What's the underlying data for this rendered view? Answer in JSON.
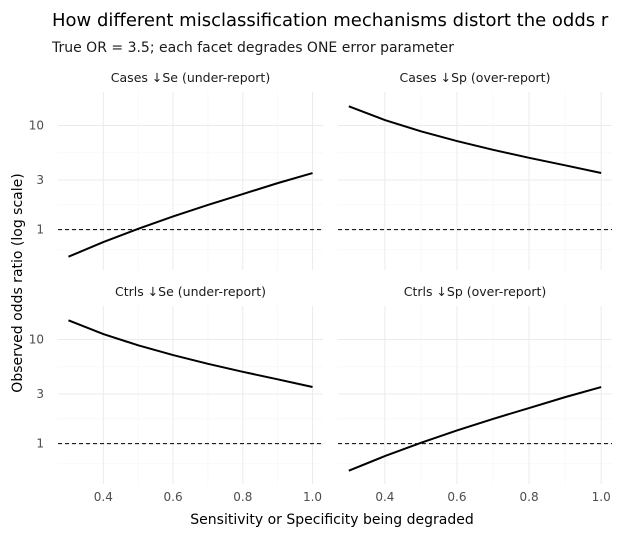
{
  "chart_data": {
    "type": "line",
    "title": "How different misclassification mechanisms distort the odds r",
    "subtitle": "True OR = 3.5; each facet degrades ONE error parameter",
    "xlabel": "Sensitivity or Specificity being degraded",
    "ylabel": "Observed odds ratio (log scale)",
    "y_scale": "log",
    "xlim": [
      0.27,
      1.03
    ],
    "ylim": [
      0.41,
      21
    ],
    "x_ticks": [
      0.4,
      0.6,
      0.8,
      1.0
    ],
    "x_tick_labels": [
      "0.4",
      "0.6",
      "0.8",
      "1.0"
    ],
    "y_ticks": [
      1,
      3,
      10
    ],
    "y_tick_labels": [
      "1",
      "3",
      "10"
    ],
    "reference_line": {
      "y": 1,
      "style": "dashed"
    },
    "grid": true,
    "legend": "none",
    "facets": [
      {
        "label": "Cases ↓Se  (under-report)",
        "series": [
          {
            "x": [
              0.3,
              0.4,
              0.5,
              0.6,
              0.7,
              0.8,
              0.9,
              1.0
            ],
            "y": [
              0.55,
              0.76,
              1.02,
              1.34,
              1.73,
              2.2,
              2.8,
              3.5
            ]
          }
        ]
      },
      {
        "label": "Cases ↓Sp  (over-report)",
        "series": [
          {
            "x": [
              0.3,
              0.4,
              0.5,
              0.6,
              0.7,
              0.8,
              0.9,
              1.0
            ],
            "y": [
              15.3,
              11.3,
              8.8,
              7.1,
              5.85,
              4.9,
              4.15,
              3.5
            ]
          }
        ]
      },
      {
        "label": "Ctrls ↓Se  (under-report)",
        "series": [
          {
            "x": [
              0.3,
              0.4,
              0.5,
              0.6,
              0.7,
              0.8,
              0.9,
              1.0
            ],
            "y": [
              15.3,
              11.3,
              8.8,
              7.1,
              5.85,
              4.9,
              4.15,
              3.5
            ]
          }
        ]
      },
      {
        "label": "Ctrls ↓Sp  (over-report)",
        "series": [
          {
            "x": [
              0.3,
              0.4,
              0.5,
              0.6,
              0.7,
              0.8,
              0.9,
              1.0
            ],
            "y": [
              0.55,
              0.76,
              1.02,
              1.34,
              1.73,
              2.2,
              2.8,
              3.5
            ]
          }
        ]
      }
    ]
  },
  "colors": {
    "line": "#000000",
    "grid_major": "#ebebeb",
    "grid_minor": "#f5f5f5",
    "tick_text": "#4d4d4d",
    "background": "#ffffff"
  }
}
